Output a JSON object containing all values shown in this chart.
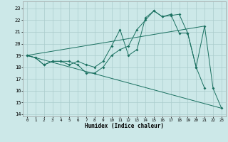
{
  "xlabel": "Humidex (Indice chaleur)",
  "background_color": "#cce8e8",
  "grid_color": "#aacccc",
  "line_color": "#1a7060",
  "xlim": [
    -0.5,
    23.5
  ],
  "ylim": [
    13.8,
    23.6
  ],
  "yticks": [
    14,
    15,
    16,
    17,
    18,
    19,
    20,
    21,
    22,
    23
  ],
  "xticks": [
    0,
    1,
    2,
    3,
    4,
    5,
    6,
    7,
    8,
    9,
    10,
    11,
    12,
    13,
    14,
    15,
    16,
    17,
    18,
    19,
    20,
    21,
    22,
    23
  ],
  "line1_x": [
    0,
    1,
    2,
    3,
    4,
    5,
    6,
    7,
    8,
    9,
    10,
    11,
    12,
    13,
    14,
    15,
    16,
    17,
    18,
    19,
    20,
    21
  ],
  "line1_y": [
    19.0,
    18.8,
    18.2,
    18.5,
    18.5,
    18.5,
    18.2,
    17.5,
    17.5,
    18.0,
    19.0,
    19.5,
    19.8,
    21.2,
    22.0,
    22.8,
    22.3,
    22.4,
    22.5,
    20.9,
    18.0,
    16.2
  ],
  "line2_x": [
    0,
    1,
    2,
    3,
    4,
    5,
    6,
    7,
    8,
    9,
    10,
    11,
    12,
    13,
    14,
    15,
    16,
    17,
    18,
    19,
    20,
    21,
    22,
    23
  ],
  "line2_y": [
    19.0,
    18.8,
    18.2,
    18.5,
    18.5,
    18.2,
    18.5,
    18.2,
    18.0,
    18.5,
    19.8,
    21.2,
    19.0,
    19.5,
    22.2,
    22.8,
    22.3,
    22.5,
    20.9,
    20.9,
    18.0,
    21.5,
    16.2,
    14.5
  ],
  "line3_x": [
    0,
    23
  ],
  "line3_y": [
    19.0,
    14.5
  ],
  "line4_x": [
    0,
    21
  ],
  "line4_y": [
    19.0,
    21.5
  ]
}
